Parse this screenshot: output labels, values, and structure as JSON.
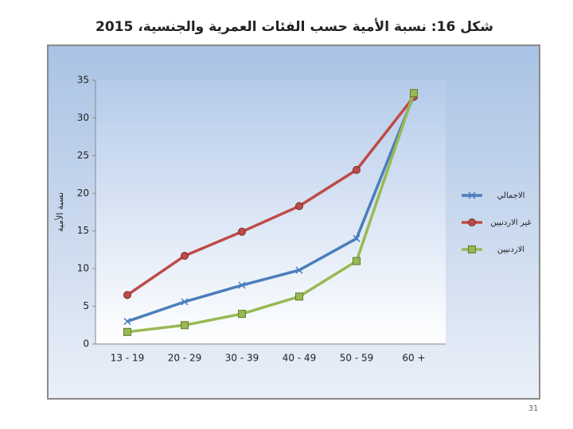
{
  "chart_data": {
    "type": "line",
    "title": "شكل 16: نسبة الأمية حسب الفئات العمرية والجنسية، 2015",
    "y_label": "نسبة الأمية",
    "categories": [
      "13 - 19",
      "20 - 29",
      "30 - 39",
      "40 - 49",
      "50 - 59",
      "60 +"
    ],
    "series": [
      {
        "name": "الاجمالي",
        "color": "#4a7ebb",
        "marker": "x",
        "values": [
          3,
          5.6,
          7.8,
          9.8,
          14,
          33
        ]
      },
      {
        "name": "غير الاردنيين",
        "color": "#be4b48",
        "marker": "circle",
        "values": [
          6.5,
          11.7,
          14.9,
          18.3,
          23.1,
          32.8
        ]
      },
      {
        "name": "الاردنيين",
        "color": "#98b954",
        "marker": "square",
        "values": [
          1.6,
          2.5,
          4,
          6.3,
          11,
          33.3
        ]
      }
    ],
    "ylim": [
      0,
      35
    ],
    "yticks": [
      0,
      5,
      10,
      15,
      20,
      25,
      30,
      35
    ],
    "grid": false,
    "legend": "right"
  },
  "page_number": "31"
}
